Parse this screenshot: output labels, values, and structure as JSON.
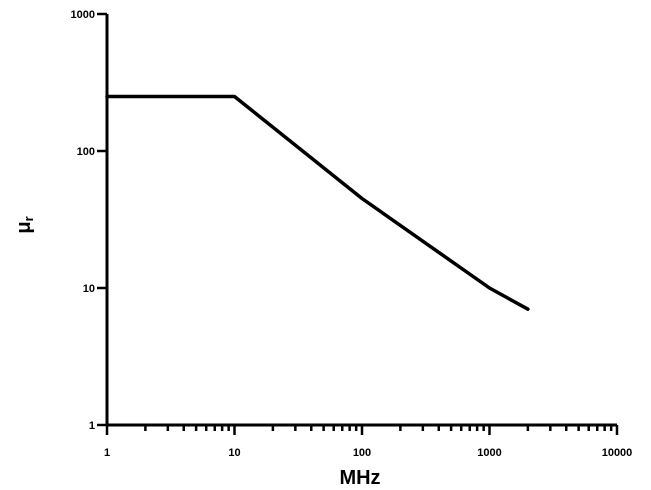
{
  "chart_data": {
    "type": "line",
    "title": "",
    "xlabel": "MHz",
    "ylabel": {
      "symbol": "μ",
      "subscript": "r"
    },
    "x_scale": "log",
    "y_scale": "log",
    "xlim": [
      1,
      10000
    ],
    "ylim": [
      1,
      1000
    ],
    "x_ticks": [
      "1",
      "10",
      "100",
      "1000",
      "10000"
    ],
    "y_ticks": [
      "1",
      "10",
      "100",
      "1000"
    ],
    "grid": false,
    "legend": "none",
    "series": [
      {
        "color": "#000000",
        "x": [
          1,
          10,
          100,
          1000,
          2000
        ],
        "y": [
          250,
          250,
          45,
          10,
          7
        ]
      }
    ]
  }
}
